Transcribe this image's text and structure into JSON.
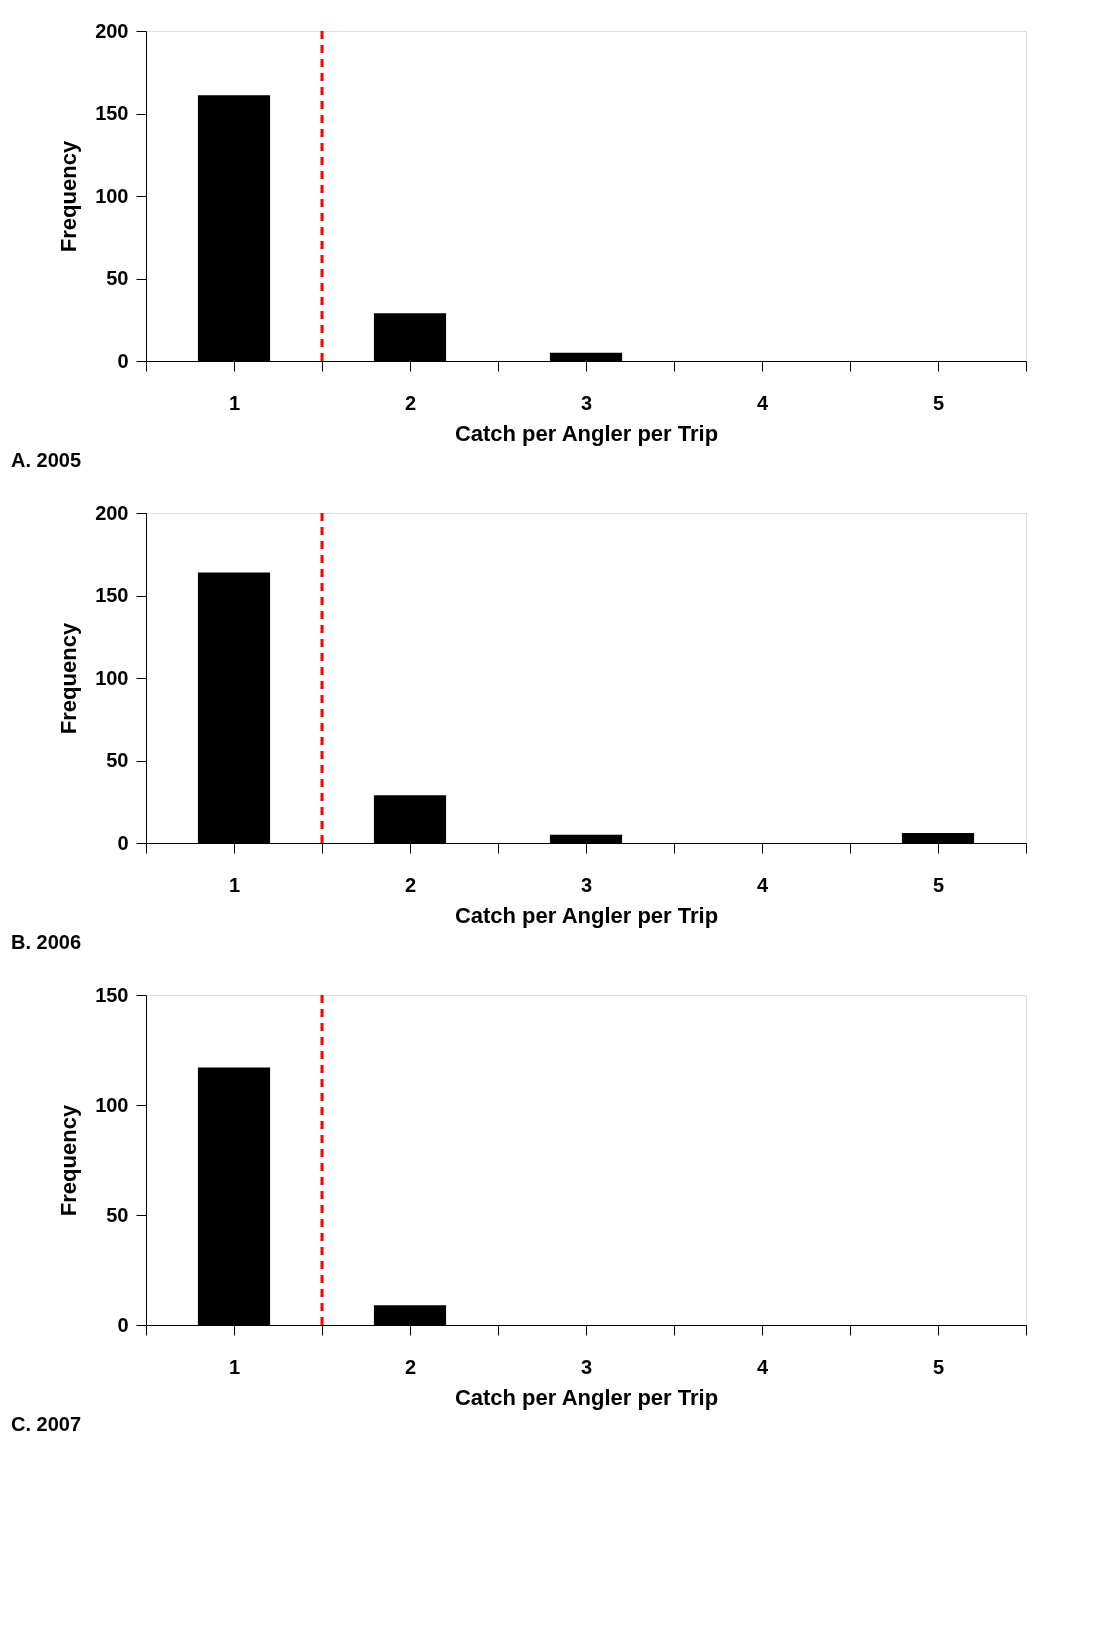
{
  "chart_data": [
    {
      "type": "bar",
      "x": [
        1,
        2,
        3,
        4,
        5
      ],
      "values": [
        161,
        29,
        5,
        0,
        0
      ],
      "color": "#000000",
      "xlabel": "Catch per Angler per Trip",
      "ylabel": "Frequency",
      "xlim": [
        0.5,
        5.5
      ],
      "xticks": [
        {
          "value": 0.5,
          "label": null
        },
        1,
        {
          "value": 1.5,
          "label": null
        },
        2,
        {
          "value": 2.5,
          "label": null
        },
        3,
        {
          "value": 3.5,
          "label": null
        },
        4,
        {
          "value": 4.5,
          "label": null
        },
        5,
        {
          "value": 5.5,
          "label": null
        }
      ],
      "ylim": [
        0,
        200
      ],
      "yticks": [
        0,
        50,
        100,
        150,
        200
      ],
      "grid": false,
      "ref_lines": [
        {
          "axis": "x",
          "value": 1.5,
          "color": "#ff0000",
          "line_style": "dashed"
        }
      ],
      "annotations": [
        "A. 2005"
      ]
    },
    {
      "type": "bar",
      "x": [
        1,
        2,
        3,
        4,
        5
      ],
      "values": [
        164,
        29,
        5,
        0,
        6
      ],
      "color": "#000000",
      "xlabel": "Catch per Angler per Trip",
      "ylabel": "Frequency",
      "xlim": [
        0.5,
        5.5
      ],
      "xticks": [
        {
          "value": 0.5,
          "label": null
        },
        1,
        {
          "value": 1.5,
          "label": null
        },
        2,
        {
          "value": 2.5,
          "label": null
        },
        3,
        {
          "value": 3.5,
          "label": null
        },
        4,
        {
          "value": 4.5,
          "label": null
        },
        5,
        {
          "value": 5.5,
          "label": null
        }
      ],
      "ylim": [
        0,
        200
      ],
      "yticks": [
        0,
        50,
        100,
        150,
        200
      ],
      "grid": false,
      "ref_lines": [
        {
          "axis": "x",
          "value": 1.5,
          "color": "#ff0000",
          "line_style": "dashed"
        }
      ],
      "annotations": [
        "B. 2006"
      ]
    },
    {
      "type": "bar",
      "x": [
        1,
        2,
        3,
        4,
        5
      ],
      "values": [
        117,
        9,
        0,
        0,
        0
      ],
      "color": "#000000",
      "xlabel": "Catch per Angler per Trip",
      "ylabel": "Frequency",
      "xlim": [
        0.5,
        5.5
      ],
      "xticks": [
        {
          "value": 0.5,
          "label": null
        },
        1,
        {
          "value": 1.5,
          "label": null
        },
        2,
        {
          "value": 2.5,
          "label": null
        },
        3,
        {
          "value": 3.5,
          "label": null
        },
        4,
        {
          "value": 4.5,
          "label": null
        },
        5,
        {
          "value": 5.5,
          "label": null
        }
      ],
      "ylim": [
        0,
        150
      ],
      "yticks": [
        0,
        50,
        100,
        150
      ],
      "grid": false,
      "ref_lines": [
        {
          "axis": "x",
          "value": 1.5,
          "color": "#ff0000",
          "line_style": "dashed"
        }
      ],
      "annotations": [
        "C. 2007"
      ]
    }
  ]
}
